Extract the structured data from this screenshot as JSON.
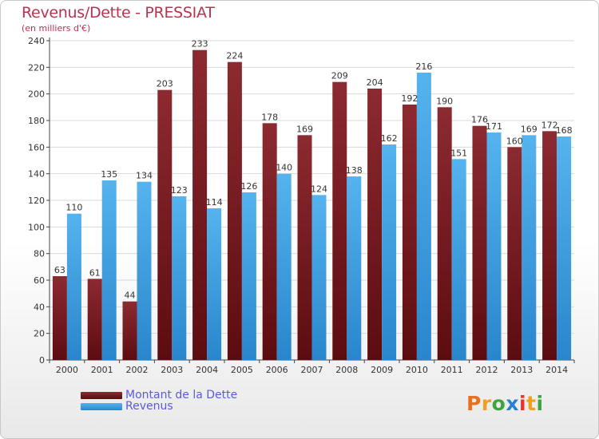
{
  "chart_data": {
    "type": "bar",
    "title": "Revenus/Dette - PRESSIAT",
    "subtitle": "(en milliers d'€)",
    "categories": [
      "2000",
      "2001",
      "2002",
      "2003",
      "2004",
      "2005",
      "2006",
      "2007",
      "2008",
      "2009",
      "2010",
      "2011",
      "2012",
      "2013",
      "2014"
    ],
    "series": [
      {
        "name": "Montant de la Dette",
        "color": "#7a1d24",
        "values": [
          63,
          61,
          44,
          203,
          233,
          224,
          178,
          169,
          209,
          204,
          192,
          190,
          176,
          160,
          172
        ]
      },
      {
        "name": "Revenus",
        "color": "#3d9fe4",
        "values": [
          110,
          135,
          134,
          123,
          114,
          126,
          140,
          124,
          138,
          162,
          216,
          151,
          171,
          169,
          168
        ]
      }
    ],
    "ylim": [
      0,
      240
    ],
    "yticks": [
      0,
      20,
      40,
      60,
      80,
      100,
      120,
      140,
      160,
      180,
      200,
      220,
      240
    ],
    "grid": true,
    "legend": "bottom-left"
  },
  "logo": {
    "letters": [
      "P",
      "r",
      "o",
      "x",
      "i",
      "t",
      "i"
    ],
    "colors": [
      "#e8701e",
      "#f0a020",
      "#3fa43f",
      "#2a7fd0",
      "#e3352e",
      "#f0a020",
      "#3fa43f"
    ]
  }
}
